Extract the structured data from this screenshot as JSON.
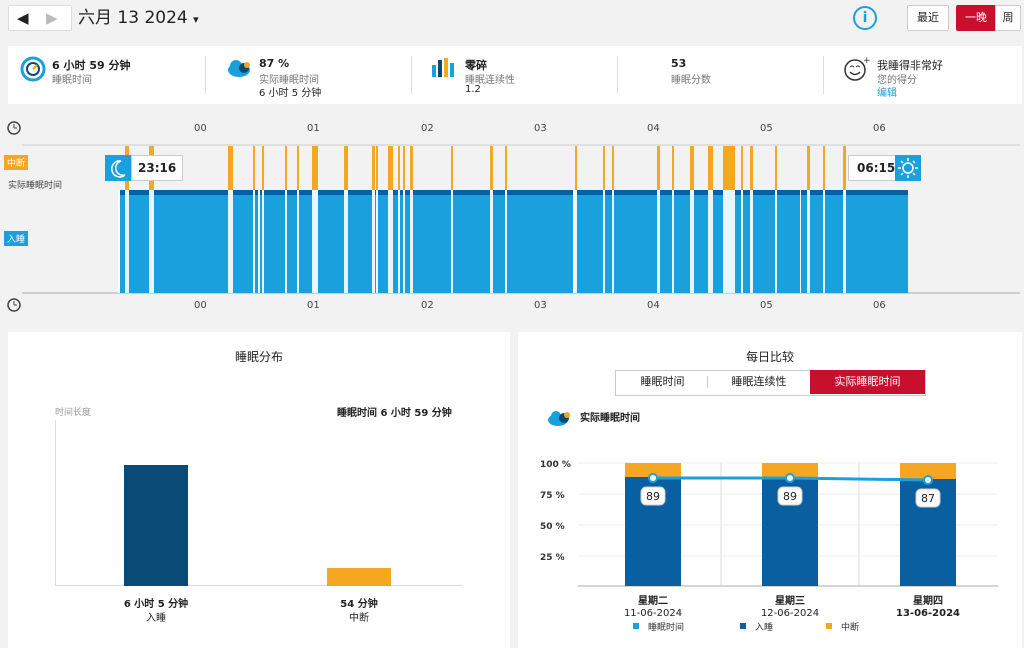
{
  "header": {
    "prev_icon": "◀",
    "next_icon": "▶",
    "date": "六月 13 2024",
    "date_caret": "▾",
    "info_icon": "i",
    "btn_recent": "最近",
    "btn_night": "一晚",
    "btn_week": "周"
  },
  "summary": {
    "total_value": "6 小时 59 分钟",
    "total_label": "睡眠时间",
    "actual_value": "87 %",
    "actual_label": "实际睡眠时间",
    "actual_sub": "6 小时 5 分钟",
    "frag_value": "零碎",
    "frag_label": "睡眠连续性",
    "frag_sub": "1.2",
    "score_value": "53",
    "score_label": "睡眠分数",
    "feel_value": "我睡得非常好",
    "feel_label": "您的得分",
    "feel_edit": "编辑"
  },
  "timeline": {
    "hours": [
      "00",
      "01",
      "02",
      "03",
      "04",
      "05",
      "06"
    ],
    "label_interrupt": "中断",
    "label_actual": "实际睡眠时间",
    "label_asleep": "入睡",
    "start_time": "23:16",
    "end_time": "06:15",
    "colors": {
      "asleep": "#1aa0dd",
      "interrupt": "#f5a623",
      "dark": "#0a5fa0"
    }
  },
  "distribution": {
    "title": "睡眠分布",
    "axis_label": "时间长度",
    "total": "睡眠时间 6 小时 59 分钟",
    "bars": [
      {
        "value_label": "6 小时 5 分钟",
        "name": "入睡",
        "minutes": 365,
        "color": "#0a4a77"
      },
      {
        "value_label": "54 分钟",
        "name": "中断",
        "minutes": 54,
        "color": "#f5a623"
      }
    ]
  },
  "compare": {
    "title": "每日比较",
    "tabs": [
      "睡眠时间",
      "睡眠连续性",
      "实际睡眠时间"
    ],
    "active_tab": "实际睡眠时间",
    "subtitle": "实际睡眠时间",
    "yticks": [
      "100 %",
      "75 %",
      "50 %",
      "25 %"
    ],
    "days": [
      {
        "day": "星期二",
        "date": "11-06-2024",
        "value": 89
      },
      {
        "day": "星期三",
        "date": "12-06-2024",
        "value": 89
      },
      {
        "day": "星期四",
        "date": "13-06-2024",
        "value": 87
      }
    ],
    "legend": [
      "睡眠时间",
      "入睡",
      "中断"
    ]
  }
}
